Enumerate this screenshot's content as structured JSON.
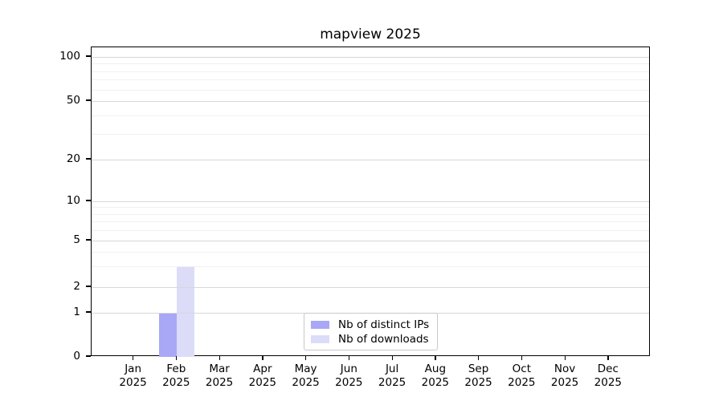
{
  "title": "mapview 2025",
  "chart_data": {
    "type": "bar",
    "title": "mapview 2025",
    "categories": [
      "Jan 2025",
      "Feb 2025",
      "Mar 2025",
      "Apr 2025",
      "May 2025",
      "Jun 2025",
      "Jul 2025",
      "Aug 2025",
      "Sep 2025",
      "Oct 2025",
      "Nov 2025",
      "Dec 2025"
    ],
    "series": [
      {
        "name": "Nb of distinct IPs",
        "color": "#a8a8f6",
        "values": [
          0,
          1,
          0,
          0,
          0,
          0,
          0,
          0,
          0,
          0,
          0,
          0
        ]
      },
      {
        "name": "Nb of downloads",
        "color": "#dcdcf9",
        "values": [
          0,
          3,
          0,
          0,
          0,
          0,
          0,
          0,
          0,
          0,
          0,
          0
        ]
      }
    ],
    "xlabel": "",
    "ylabel": "",
    "y_scale": "symlog",
    "y_ticks": [
      0,
      1,
      2,
      5,
      10,
      20,
      50,
      100
    ],
    "y_minor_gridlines": [
      3,
      4,
      6,
      7,
      8,
      9,
      30,
      40,
      60,
      70,
      80,
      90
    ],
    "ylim": [
      0,
      117
    ],
    "grid": "horizontal major+minor",
    "legend_position": "inside bottom-center",
    "colors": {
      "major_grid": "#d7d7d7",
      "minor_grid": "#f0f0f0",
      "axis": "#000000",
      "background": "#ffffff"
    }
  }
}
